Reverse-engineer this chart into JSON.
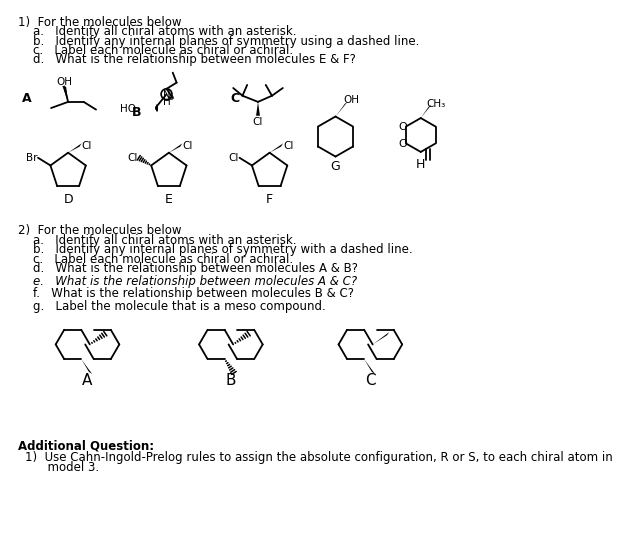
{
  "background_color": "#ffffff",
  "text_color": "#000000",
  "page_width": 5.85,
  "page_height": 6.76,
  "title1": "1)  For the molecules below",
  "q1a": "a.   Identify all chiral atoms with an asterisk.",
  "q1b": "b.   Identify any internal planes of symmetry using a dashed line.",
  "q1c": "c.   Label each molecule as chiral or achiral.",
  "q1d": "d.   What is the relationship between molecules E & F?",
  "title2": "2)  For the molecules below",
  "q2a": "a.   Identify all chiral atoms with an asterisk.",
  "q2b": "b.   Identify any internal planes of symmetry with a dashed line.",
  "q2c": "c.   Label each molecule as chiral or achiral.",
  "q2d": "d.   What is the relationship between molecules A & B?",
  "q2e": "e.   What is the relationship between molecules A & C?",
  "q2f": "f.   What is the relationship between molecules B & C?",
  "q2g": "g.   Label the molecule that is a meso compound.",
  "additional": "Additional Question:",
  "add1": "1)  Use Cahn-Ingold-Prelog rules to assign the absolute configuration, R or S, to each chiral atom in",
  "add1b": "      model 3."
}
